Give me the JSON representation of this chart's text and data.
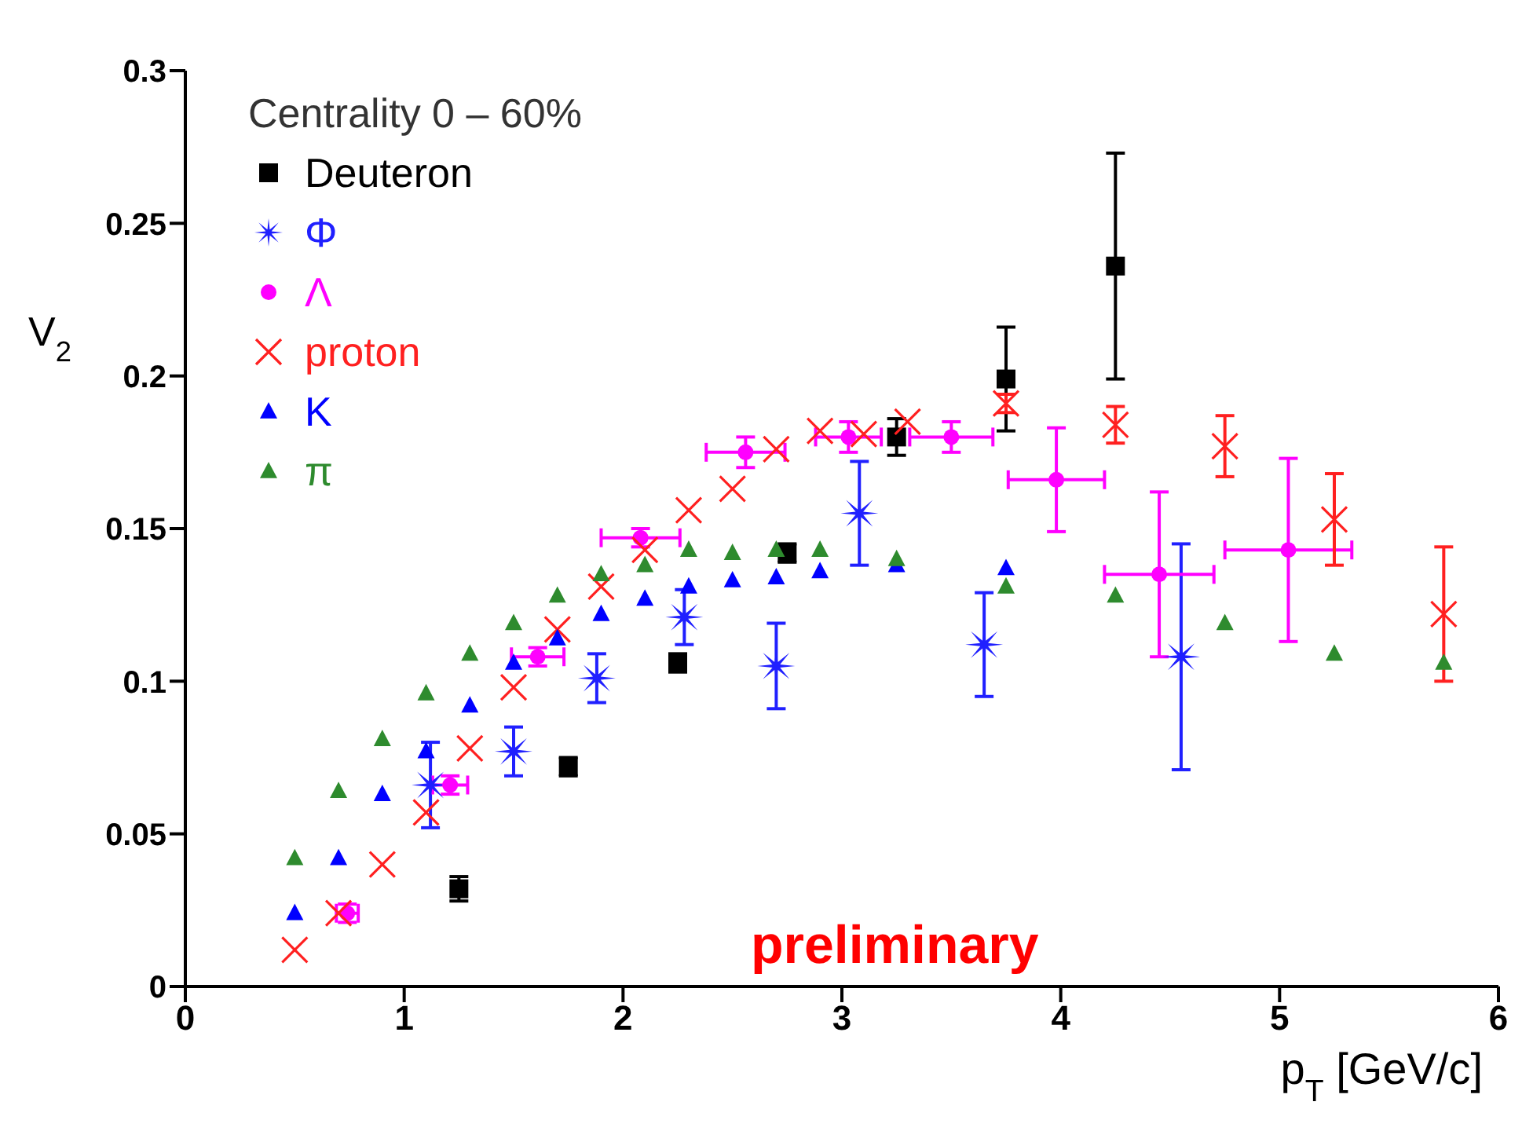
{
  "chart_data": {
    "type": "scatter",
    "xlabel": "p$_{T}$ [GeV/c]",
    "ylabel": "V$_{2}$",
    "legend_title": "Centrality 0 – 60%",
    "legend": "top left",
    "xlim": [
      0,
      6
    ],
    "xticks": [
      0,
      1,
      2,
      3,
      4,
      5,
      6
    ],
    "ylim": [
      0,
      0.3
    ],
    "yticks": [
      0,
      0.05,
      0.1,
      0.15,
      0.2,
      0.25,
      0.3
    ],
    "annotations": [
      "preliminary"
    ],
    "series": [
      {
        "name": "Deuteron",
        "color": "#000000",
        "marker": "square",
        "x": [
          1.25,
          1.75,
          2.25,
          2.75,
          3.25,
          3.75,
          4.25
        ],
        "values": [
          0.032,
          0.072,
          0.106,
          0.142,
          0.18,
          0.199,
          0.236
        ],
        "errors": [
          0.004,
          0.003,
          0.003,
          0.003,
          0.006,
          0.017,
          0.037
        ]
      },
      {
        "name": "Φ",
        "color": "#2020ff",
        "marker": "star",
        "x": [
          1.12,
          1.5,
          1.88,
          2.28,
          2.7,
          3.08,
          3.65,
          4.55
        ],
        "values": [
          0.066,
          0.077,
          0.101,
          0.121,
          0.105,
          0.155,
          0.112,
          0.108
        ],
        "errors": [
          0.014,
          0.008,
          0.008,
          0.009,
          0.014,
          0.017,
          0.017,
          0.037
        ]
      },
      {
        "name": "Λ",
        "color": "#ff00ff",
        "marker": "circle",
        "x": [
          0.74,
          1.21,
          1.61,
          2.08,
          2.56,
          3.03,
          3.5,
          3.98,
          4.45,
          5.04
        ],
        "values": [
          0.024,
          0.066,
          0.108,
          0.147,
          0.175,
          0.18,
          0.18,
          0.166,
          0.135,
          0.143
        ],
        "errors": [
          0.003,
          0.003,
          0.003,
          0.003,
          0.005,
          0.005,
          0.005,
          0.017,
          0.027,
          0.03
        ],
        "xerrors": [
          0.05,
          0.08,
          0.12,
          0.18,
          0.18,
          0.15,
          0.19,
          0.22,
          0.25,
          0.29
        ]
      },
      {
        "name": "proton",
        "color": "#ff2020",
        "marker": "cross",
        "x": [
          0.5,
          0.7,
          0.9,
          1.1,
          1.3,
          1.5,
          1.7,
          1.9,
          2.1,
          2.3,
          2.5,
          2.7,
          2.9,
          3.1,
          3.3,
          3.75,
          4.25,
          4.75,
          5.25,
          5.75
        ],
        "values": [
          0.012,
          0.024,
          0.04,
          0.057,
          0.078,
          0.098,
          0.117,
          0.131,
          0.143,
          0.156,
          0.163,
          0.176,
          0.182,
          0.181,
          0.185,
          0.191,
          0.184,
          0.177,
          0.153,
          0.122
        ],
        "errors": [
          null,
          null,
          null,
          null,
          null,
          null,
          null,
          null,
          null,
          null,
          null,
          null,
          null,
          null,
          null,
          0.003,
          0.006,
          0.01,
          0.015,
          0.022
        ]
      },
      {
        "name": "K",
        "color": "#0000ff",
        "marker": "triangle",
        "x": [
          0.5,
          0.7,
          0.9,
          1.1,
          1.3,
          1.5,
          1.7,
          1.9,
          2.1,
          2.3,
          2.5,
          2.7,
          2.9,
          3.25,
          3.75
        ],
        "values": [
          0.024,
          0.042,
          0.063,
          0.077,
          0.092,
          0.106,
          0.114,
          0.122,
          0.127,
          0.131,
          0.133,
          0.134,
          0.136,
          0.138,
          0.137
        ]
      },
      {
        "name": "π",
        "color": "#2e8b2e",
        "marker": "triangle",
        "x": [
          0.5,
          0.7,
          0.9,
          1.1,
          1.3,
          1.5,
          1.7,
          1.9,
          2.1,
          2.3,
          2.5,
          2.7,
          2.9,
          3.25,
          3.75,
          4.25,
          4.75,
          5.25,
          5.75
        ],
        "values": [
          0.042,
          0.064,
          0.081,
          0.096,
          0.109,
          0.119,
          0.128,
          0.135,
          0.138,
          0.143,
          0.142,
          0.143,
          0.143,
          0.14,
          0.131,
          0.128,
          0.119,
          0.109,
          0.106
        ]
      }
    ]
  }
}
